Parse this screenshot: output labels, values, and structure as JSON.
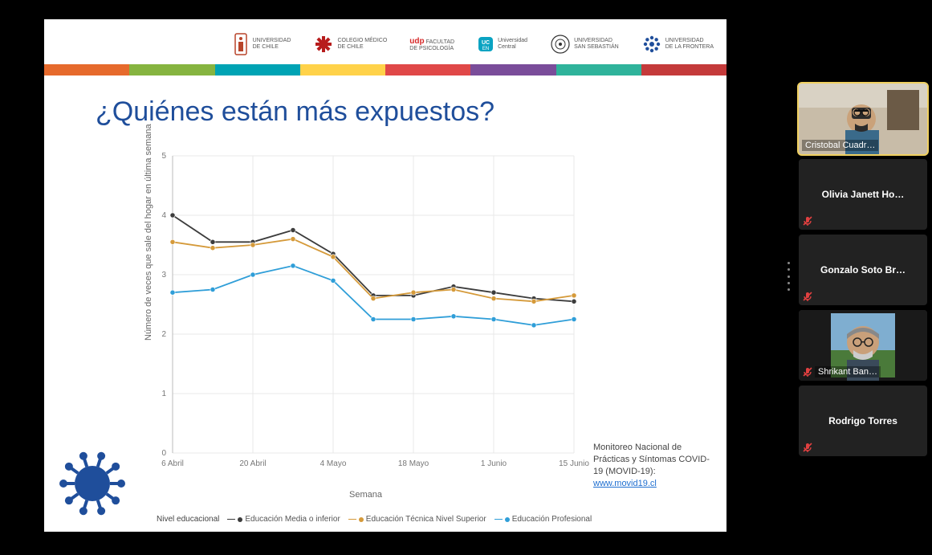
{
  "slide": {
    "title": "¿Quiénes están más expuestos?",
    "logos": [
      {
        "name": "uchile",
        "text": "UNIVERSIDAD\nDE CHILE",
        "color": "#b8442a"
      },
      {
        "name": "colmed",
        "text": "COLEGIO MÉDICO\nDE CHILE",
        "color": "#b71c1c"
      },
      {
        "name": "udp",
        "text": "udp FACULTAD\nDE PSICOLOGÍA",
        "accent": "#d62828",
        "color": "#444"
      },
      {
        "name": "ucen",
        "text": "Universidad\nCentral",
        "color": "#0aa3c2"
      },
      {
        "name": "uss",
        "text": "UNIVERSIDAD\nSAN SEBASTIÁN",
        "color": "#333"
      },
      {
        "name": "ufro",
        "text": "UNIVERSIDAD\nDE LA FRONTERA",
        "color": "#1f4e9b"
      }
    ],
    "stripe_colors": [
      "#e66a2c",
      "#86b440",
      "#00a3b4",
      "#ffd24a",
      "#e04848",
      "#7a4d9a",
      "#2fb39b",
      "#c43a3a"
    ],
    "chart": {
      "type": "line",
      "xlabel": "Semana",
      "ylabel": "Número de veces que sale del hogar en última semana",
      "legend_title": "Nivel educacional",
      "x_ticks": [
        "6 Abril",
        "20 Abril",
        "4 Mayo",
        "18 Mayo",
        "1 Junio",
        "15 Junio"
      ],
      "x_positions": [
        0,
        1,
        2,
        3,
        4,
        5,
        6,
        7,
        8,
        9,
        10
      ],
      "xlim": [
        0,
        10
      ],
      "ylim": [
        0,
        5
      ],
      "ytick_step": 1,
      "grid_color": "#e9e9e9",
      "axis_color": "#bbbbbb",
      "background_color": "#ffffff",
      "tick_fontsize": 10,
      "label_fontsize": 11,
      "marker_size": 4,
      "line_width": 1.8,
      "series": [
        {
          "name": "Educación Media o inferior",
          "color": "#3c3c3c",
          "values": [
            4.0,
            3.55,
            3.55,
            3.75,
            3.35,
            2.65,
            2.65,
            2.8,
            2.7,
            2.6,
            2.55
          ]
        },
        {
          "name": "Educación Técnica Nivel Superior",
          "color": "#d59a3a",
          "values": [
            3.55,
            3.45,
            3.5,
            3.6,
            3.3,
            2.6,
            2.7,
            2.75,
            2.6,
            2.55,
            2.65
          ]
        },
        {
          "name": "Educación Profesional",
          "color": "#2f9ed8",
          "values": [
            2.7,
            2.75,
            3.0,
            3.15,
            2.9,
            2.25,
            2.25,
            2.3,
            2.25,
            2.15,
            2.25
          ]
        }
      ]
    },
    "footnote": {
      "text": "Monitoreo Nacional de Prácticas y Síntomas COVID-19 (MOVID-19):",
      "link_text": "www.movid19.cl"
    },
    "virus_color": "#1f4e9b"
  },
  "participants": [
    {
      "name": "Cristobal Cuadr…",
      "muted": false,
      "active": true,
      "has_video": true
    },
    {
      "name": "Olivia  Janett  Ho…",
      "muted": true,
      "active": false,
      "has_video": false
    },
    {
      "name": "Gonzalo  Soto  Br…",
      "muted": true,
      "active": false,
      "has_video": false
    },
    {
      "name": "Shrikant Ban…",
      "muted": true,
      "active": false,
      "has_video": true
    },
    {
      "name": "Rodrigo Torres",
      "muted": true,
      "active": false,
      "has_video": false
    }
  ],
  "colors": {
    "active_outline": "#f0d060",
    "mute_icon": "#e04040",
    "tile_bg": "#222222"
  }
}
